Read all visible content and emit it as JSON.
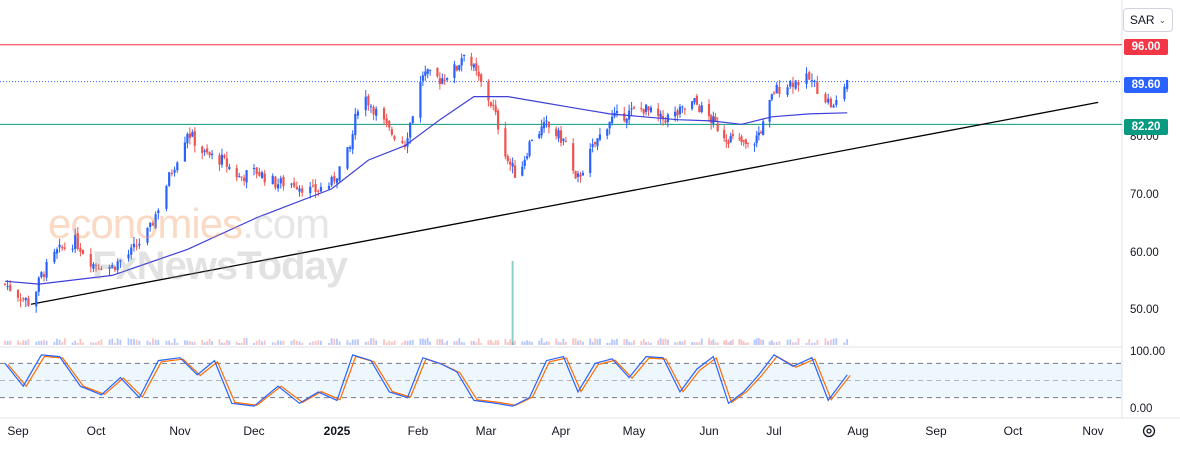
{
  "currency": "SAR",
  "watermark": {
    "line1_colored": "economies",
    "line1_suffix": ".com",
    "line2": "FxNewsToday"
  },
  "price_axis": {
    "ticks": [
      "80.00",
      "70.00",
      "60.00",
      "50.00"
    ]
  },
  "oscillator_axis": {
    "ticks": [
      "100.00",
      "0.00"
    ]
  },
  "levels": [
    {
      "label": "96.00",
      "value": 96.0,
      "color": "#f23645"
    },
    {
      "label": "89.60",
      "value": 89.6,
      "color": "#2962ff"
    },
    {
      "label": "82.20",
      "value": 82.2,
      "color": "#089981"
    }
  ],
  "x_axis": {
    "labels": [
      "Sep",
      "Oct",
      "Nov",
      "Dec",
      "2025",
      "Feb",
      "Mar",
      "Apr",
      "May",
      "Jun",
      "Jul",
      "Aug",
      "Sep",
      "Oct",
      "Nov"
    ]
  },
  "colors": {
    "up": "#2962ff",
    "down": "#ef5350",
    "ma": "#3f3fd9",
    "stoch_k": "#2962ff",
    "stoch_d": "#ff6d00",
    "trendline": "#000000"
  },
  "chart_data": {
    "type": "candlestick",
    "price_range": [
      45,
      100
    ],
    "trendline": [
      {
        "date": "2024-09-06",
        "value": 51.0
      },
      {
        "date": "2025-11-03",
        "value": 86.0
      }
    ],
    "moving_average_points": [
      [
        "2024-08-27",
        55.0
      ],
      [
        "2024-09-09",
        54.5
      ],
      [
        "2024-10-07",
        56.0
      ],
      [
        "2024-11-04",
        60.5
      ],
      [
        "2024-12-02",
        66.0
      ],
      [
        "2024-12-30",
        71.0
      ],
      [
        "2025-01-13",
        76.0
      ],
      [
        "2025-01-27",
        78.5
      ],
      [
        "2025-02-10",
        83.0
      ],
      [
        "2025-02-24",
        87.0
      ],
      [
        "2025-03-10",
        87.0
      ],
      [
        "2025-03-24",
        86.0
      ],
      [
        "2025-04-07",
        85.0
      ],
      [
        "2025-04-21",
        84.0
      ],
      [
        "2025-05-05",
        83.5
      ],
      [
        "2025-05-19",
        83.0
      ],
      [
        "2025-06-02",
        82.8
      ],
      [
        "2025-06-16",
        82.2
      ],
      [
        "2025-06-30",
        83.5
      ],
      [
        "2025-07-14",
        84.0
      ],
      [
        "2025-07-28",
        84.2
      ]
    ],
    "price_points": [
      [
        "2024-08-27",
        54.5
      ],
      [
        "2024-09-03",
        52.0
      ],
      [
        "2024-09-06",
        51.0
      ],
      [
        "2024-09-10",
        56.0
      ],
      [
        "2024-09-16",
        60.0
      ],
      [
        "2024-09-23",
        62.0
      ],
      [
        "2024-09-30",
        58.0
      ],
      [
        "2024-10-07",
        57.5
      ],
      [
        "2024-10-14",
        60.0
      ],
      [
        "2024-10-21",
        64.0
      ],
      [
        "2024-10-28",
        73.0
      ],
      [
        "2024-11-04",
        81.0
      ],
      [
        "2024-11-11",
        77.0
      ],
      [
        "2024-11-18",
        76.0
      ],
      [
        "2024-11-25",
        73.0
      ],
      [
        "2024-12-02",
        74.0
      ],
      [
        "2024-12-09",
        72.0
      ],
      [
        "2024-12-16",
        72.0
      ],
      [
        "2024-12-23",
        70.5
      ],
      [
        "2024-12-30",
        72.0
      ],
      [
        "2025-01-06",
        78.0
      ],
      [
        "2025-01-10",
        88.0
      ],
      [
        "2025-01-15",
        85.0
      ],
      [
        "2025-01-21",
        81.0
      ],
      [
        "2025-01-27",
        79.0
      ],
      [
        "2025-02-03",
        91.0
      ],
      [
        "2025-02-10",
        90.0
      ],
      [
        "2025-02-17",
        92.0
      ],
      [
        "2025-02-20",
        95.0
      ],
      [
        "2025-02-26",
        90.0
      ],
      [
        "2025-03-04",
        85.0
      ],
      [
        "2025-03-10",
        76.0
      ],
      [
        "2025-03-14",
        73.0
      ],
      [
        "2025-03-20",
        80.0
      ],
      [
        "2025-03-26",
        82.0
      ],
      [
        "2025-04-03",
        79.0
      ],
      [
        "2025-04-07",
        72.0
      ],
      [
        "2025-04-14",
        78.0
      ],
      [
        "2025-04-21",
        83.0
      ],
      [
        "2025-04-28",
        84.0
      ],
      [
        "2025-05-05",
        85.0
      ],
      [
        "2025-05-12",
        83.0
      ],
      [
        "2025-05-19",
        84.0
      ],
      [
        "2025-05-26",
        86.0
      ],
      [
        "2025-06-02",
        83.0
      ],
      [
        "2025-06-09",
        80.0
      ],
      [
        "2025-06-16",
        79.0
      ],
      [
        "2025-06-20",
        78.0
      ],
      [
        "2025-06-26",
        82.0
      ],
      [
        "2025-07-01",
        88.0
      ],
      [
        "2025-07-07",
        89.5
      ],
      [
        "2025-07-14",
        90.0
      ],
      [
        "2025-07-18",
        88.0
      ],
      [
        "2025-07-23",
        85.0
      ],
      [
        "2025-07-28",
        90.0
      ]
    ],
    "volume_spike": {
      "date": "2025-03-12",
      "relative": 1.0
    },
    "stochastic": {
      "range": [
        0,
        100
      ],
      "band": [
        20,
        80
      ],
      "k_points": [
        [
          "2024-08-27",
          80
        ],
        [
          "2024-09-03",
          40
        ],
        [
          "2024-09-10",
          95
        ],
        [
          "2024-09-17",
          92
        ],
        [
          "2024-09-25",
          40
        ],
        [
          "2024-10-03",
          25
        ],
        [
          "2024-10-10",
          55
        ],
        [
          "2024-10-17",
          20
        ],
        [
          "2024-10-24",
          85
        ],
        [
          "2024-11-01",
          90
        ],
        [
          "2024-11-08",
          60
        ],
        [
          "2024-11-15",
          85
        ],
        [
          "2024-11-22",
          10
        ],
        [
          "2024-12-01",
          5
        ],
        [
          "2024-12-10",
          40
        ],
        [
          "2024-12-18",
          10
        ],
        [
          "2024-12-25",
          30
        ],
        [
          "2025-01-01",
          15
        ],
        [
          "2025-01-07",
          95
        ],
        [
          "2025-01-14",
          85
        ],
        [
          "2025-01-21",
          30
        ],
        [
          "2025-01-28",
          20
        ],
        [
          "2025-02-03",
          90
        ],
        [
          "2025-02-10",
          80
        ],
        [
          "2025-02-17",
          65
        ],
        [
          "2025-02-24",
          15
        ],
        [
          "2025-03-05",
          10
        ],
        [
          "2025-03-12",
          5
        ],
        [
          "2025-03-19",
          20
        ],
        [
          "2025-03-26",
          85
        ],
        [
          "2025-04-02",
          92
        ],
        [
          "2025-04-08",
          30
        ],
        [
          "2025-04-15",
          80
        ],
        [
          "2025-04-22",
          88
        ],
        [
          "2025-04-29",
          55
        ],
        [
          "2025-05-06",
          92
        ],
        [
          "2025-05-13",
          90
        ],
        [
          "2025-05-20",
          30
        ],
        [
          "2025-05-27",
          70
        ],
        [
          "2025-06-03",
          92
        ],
        [
          "2025-06-10",
          10
        ],
        [
          "2025-06-17",
          30
        ],
        [
          "2025-06-24",
          60
        ],
        [
          "2025-07-01",
          95
        ],
        [
          "2025-07-08",
          75
        ],
        [
          "2025-07-15",
          90
        ],
        [
          "2025-07-21",
          15
        ],
        [
          "2025-07-28",
          60
        ]
      ]
    }
  }
}
